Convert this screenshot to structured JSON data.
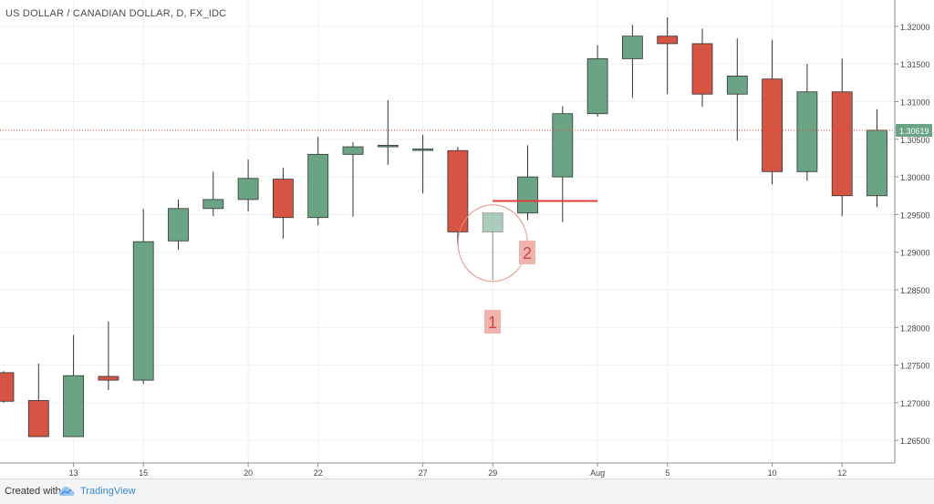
{
  "title": "US DOLLAR / CANADIAN DOLLAR, D, FX_IDC",
  "footer": {
    "created_with": "Created with",
    "brand": "TradingView"
  },
  "colors": {
    "up": "#6aa484",
    "down": "#d65444",
    "grid": "#eef0f2",
    "price_line": "#e03a3a",
    "price_tag": "#6aa484",
    "annotation_bg": "#f0b3ad",
    "annotation_text": "#c44a40"
  },
  "annotations": {
    "label_1": "1",
    "label_2": "2"
  },
  "chart_data": {
    "type": "candlestick",
    "symbol": "US DOLLAR / CANADIAN DOLLAR",
    "interval": "D",
    "source": "FX_IDC",
    "ylim": [
      1.262,
      1.3235
    ],
    "y_ticks": [
      "1.26500",
      "1.27000",
      "1.27500",
      "1.28000",
      "1.28500",
      "1.29000",
      "1.29500",
      "1.30000",
      "1.30500",
      "1.31000",
      "1.31500",
      "1.32000"
    ],
    "x_tick_labels": [
      "13",
      "15",
      "20",
      "22",
      "27",
      "29",
      "Aug",
      "5",
      "10",
      "12"
    ],
    "last_price": 1.30619,
    "last_price_label": "1.30619",
    "support_level": 1.2968,
    "candles": [
      {
        "x_label": "",
        "open": 1.274,
        "high": 1.2742,
        "low": 1.27,
        "close": 1.2702
      },
      {
        "x_label": "",
        "open": 1.2703,
        "high": 1.2752,
        "low": 1.2655,
        "close": 1.2655
      },
      {
        "x_label": "13",
        "open": 1.2655,
        "high": 1.279,
        "low": 1.2655,
        "close": 1.2736
      },
      {
        "x_label": "",
        "open": 1.2735,
        "high": 1.2808,
        "low": 1.2717,
        "close": 1.273
      },
      {
        "x_label": "15",
        "open": 1.273,
        "high": 1.2957,
        "low": 1.2725,
        "close": 1.2914
      },
      {
        "x_label": "",
        "open": 1.2915,
        "high": 1.297,
        "low": 1.2903,
        "close": 1.2958
      },
      {
        "x_label": "",
        "open": 1.2958,
        "high": 1.3007,
        "low": 1.2948,
        "close": 1.297
      },
      {
        "x_label": "20",
        "open": 1.297,
        "high": 1.3023,
        "low": 1.2954,
        "close": 1.2998
      },
      {
        "x_label": "",
        "open": 1.2997,
        "high": 1.3012,
        "low": 1.2918,
        "close": 1.2946
      },
      {
        "x_label": "22",
        "open": 1.2946,
        "high": 1.3053,
        "low": 1.2936,
        "close": 1.303
      },
      {
        "x_label": "",
        "open": 1.303,
        "high": 1.3046,
        "low": 1.2947,
        "close": 1.304
      },
      {
        "x_label": "",
        "open": 1.304,
        "high": 1.3102,
        "low": 1.3016,
        "close": 1.3042
      },
      {
        "x_label": "27",
        "open": 1.3036,
        "high": 1.3056,
        "low": 1.2978,
        "close": 1.3037
      },
      {
        "x_label": "",
        "open": 1.3035,
        "high": 1.304,
        "low": 1.291,
        "close": 1.2927
      },
      {
        "x_label": "29",
        "open": 1.2927,
        "high": 1.2952,
        "low": 1.2863,
        "close": 1.2952
      },
      {
        "x_label": "",
        "open": 1.2952,
        "high": 1.3042,
        "low": 1.2943,
        "close": 1.3
      },
      {
        "x_label": "",
        "open": 1.3,
        "high": 1.3094,
        "low": 1.294,
        "close": 1.3084
      },
      {
        "x_label": "Aug",
        "open": 1.3084,
        "high": 1.3175,
        "low": 1.308,
        "close": 1.3157
      },
      {
        "x_label": "",
        "open": 1.3157,
        "high": 1.3202,
        "low": 1.3105,
        "close": 1.3187
      },
      {
        "x_label": "5",
        "open": 1.3187,
        "high": 1.3212,
        "low": 1.311,
        "close": 1.3177
      },
      {
        "x_label": "",
        "open": 1.3177,
        "high": 1.3197,
        "low": 1.3093,
        "close": 1.311
      },
      {
        "x_label": "",
        "open": 1.311,
        "high": 1.3184,
        "low": 1.3048,
        "close": 1.3134
      },
      {
        "x_label": "10",
        "open": 1.313,
        "high": 1.3182,
        "low": 1.299,
        "close": 1.3007
      },
      {
        "x_label": "",
        "open": 1.3007,
        "high": 1.315,
        "low": 1.2995,
        "close": 1.3113
      },
      {
        "x_label": "12",
        "open": 1.3113,
        "high": 1.3157,
        "low": 1.2948,
        "close": 1.2975
      },
      {
        "x_label": "",
        "open": 1.2975,
        "high": 1.309,
        "low": 1.296,
        "close": 1.3062
      }
    ]
  }
}
